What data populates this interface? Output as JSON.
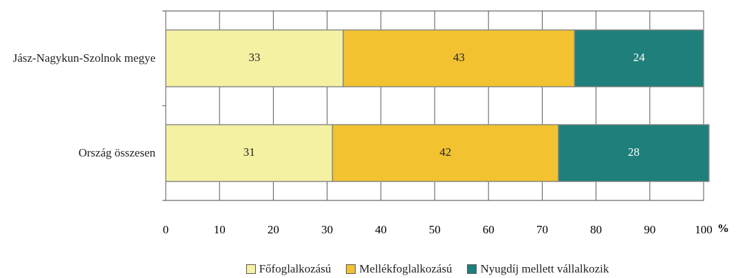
{
  "chart_data": {
    "type": "stacked_barh",
    "categories": [
      "Jász-Nagykun-Szolnok megye",
      "Ország összesen"
    ],
    "series": [
      {
        "name": "Főfoglalkozású",
        "color": "#f5f1a3",
        "values": [
          33,
          31
        ]
      },
      {
        "name": "Mellékfoglalkozású",
        "color": "#f2c230",
        "values": [
          43,
          42
        ]
      },
      {
        "name": "Nyugdíj mellett vállalkozik",
        "color": "#1f7f7a",
        "values": [
          24,
          28
        ]
      }
    ],
    "xlim": [
      0,
      100
    ],
    "xticks": [
      0,
      10,
      20,
      30,
      40,
      50,
      60,
      70,
      80,
      90,
      100
    ],
    "xlabel": "%",
    "grid": true,
    "legend": "bottom"
  }
}
